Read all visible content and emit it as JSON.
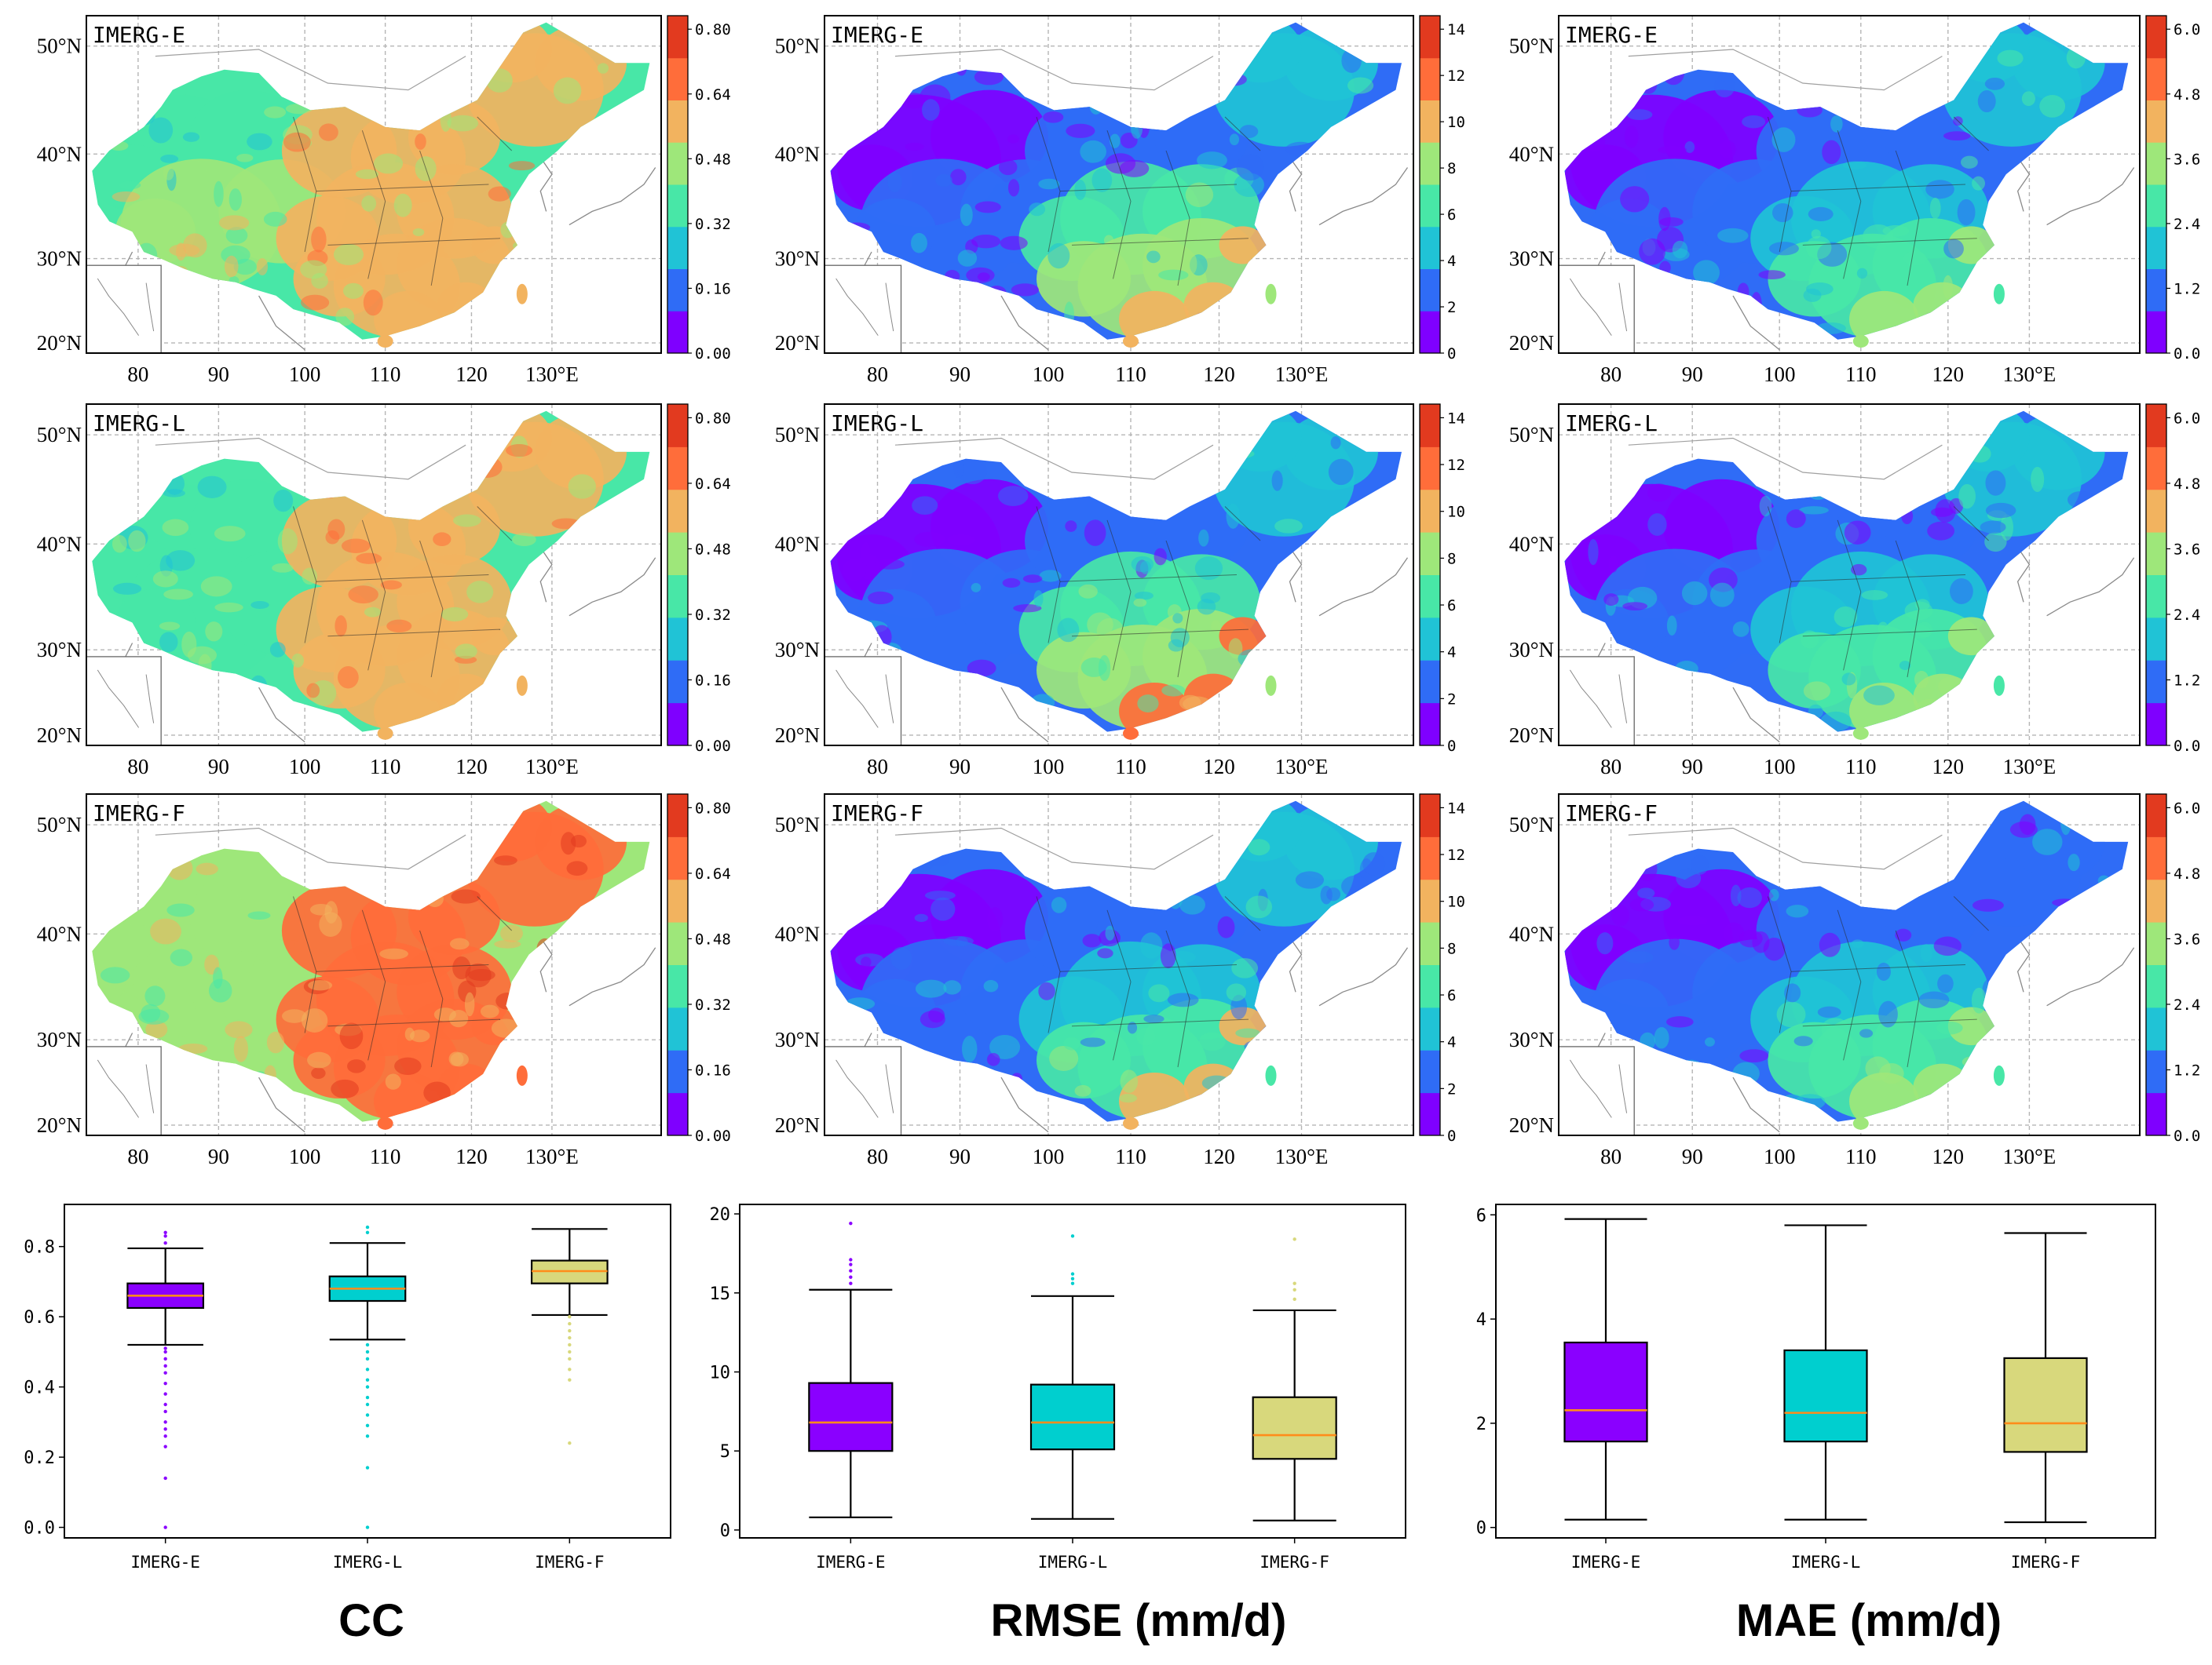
{
  "figure": {
    "captions": [
      "CC",
      "RMSE (mm/d)",
      "MAE (mm/d)"
    ]
  },
  "maps": {
    "lat_labels": [
      "50°N",
      "40°N",
      "30°N",
      "20°N"
    ],
    "lon_labels": [
      "80",
      "90",
      "100",
      "110",
      "120",
      "130°E"
    ],
    "products": [
      "IMERG-E",
      "IMERG-L",
      "IMERG-F"
    ],
    "metrics": [
      {
        "name": "CC",
        "colorbar_ticks": [
          "0.80",
          "0.64",
          "0.48",
          "0.32",
          "0.16",
          "0.00"
        ]
      },
      {
        "name": "RMSE",
        "colorbar_ticks": [
          "14",
          "12",
          "10",
          "8",
          "6",
          "4",
          "2",
          "0"
        ]
      },
      {
        "name": "MAE",
        "colorbar_ticks": [
          "6.0",
          "4.8",
          "3.6",
          "2.4",
          "1.2",
          "0.0"
        ]
      }
    ],
    "colormap": [
      "#7f00ff",
      "#2f6cf6",
      "#20c3d6",
      "#48e7a7",
      "#9ee77a",
      "#f2b35f",
      "#ff6d3a",
      "#e23a1f"
    ]
  },
  "chart_data": [
    {
      "type": "box",
      "title": "CC",
      "categories": [
        "IMERG-E",
        "IMERG-L",
        "IMERG-F"
      ],
      "ylim": [
        -0.03,
        0.92
      ],
      "yticks": [
        "0.0",
        "0.2",
        "0.4",
        "0.6",
        "0.8"
      ],
      "ytick_values": [
        0.0,
        0.2,
        0.4,
        0.6,
        0.8
      ],
      "boxes": [
        {
          "name": "IMERG-E",
          "color": "#8a00ff",
          "whisker_low": 0.52,
          "q1": 0.625,
          "median": 0.66,
          "q3": 0.695,
          "whisker_high": 0.795,
          "outliers": [
            0.0,
            0.14,
            0.23,
            0.26,
            0.28,
            0.3,
            0.33,
            0.35,
            0.38,
            0.41,
            0.44,
            0.46,
            0.48,
            0.5,
            0.51,
            0.81,
            0.83,
            0.84
          ]
        },
        {
          "name": "IMERG-L",
          "color": "#00cfcf",
          "whisker_low": 0.535,
          "q1": 0.645,
          "median": 0.68,
          "q3": 0.715,
          "whisker_high": 0.81,
          "outliers": [
            0.0,
            0.17,
            0.26,
            0.29,
            0.32,
            0.35,
            0.37,
            0.4,
            0.42,
            0.45,
            0.48,
            0.5,
            0.52,
            0.84,
            0.855
          ]
        },
        {
          "name": "IMERG-F",
          "color": "#d8d87c",
          "whisker_low": 0.605,
          "q1": 0.695,
          "median": 0.73,
          "q3": 0.76,
          "whisker_high": 0.85,
          "outliers": [
            0.24,
            0.42,
            0.45,
            0.48,
            0.5,
            0.52,
            0.54,
            0.56,
            0.58,
            0.6
          ]
        }
      ]
    },
    {
      "type": "box",
      "title": "RMSE (mm/d)",
      "categories": [
        "IMERG-E",
        "IMERG-L",
        "IMERG-F"
      ],
      "ylim": [
        -0.5,
        20.6
      ],
      "yticks": [
        "0",
        "5",
        "10",
        "15",
        "20"
      ],
      "ytick_values": [
        0,
        5,
        10,
        15,
        20
      ],
      "boxes": [
        {
          "name": "IMERG-E",
          "color": "#8a00ff",
          "whisker_low": 0.8,
          "q1": 5.0,
          "median": 6.8,
          "q3": 9.3,
          "whisker_high": 15.2,
          "outliers": [
            15.6,
            16.0,
            16.4,
            16.8,
            17.1,
            19.4
          ]
        },
        {
          "name": "IMERG-L",
          "color": "#00cfcf",
          "whisker_low": 0.7,
          "q1": 5.1,
          "median": 6.8,
          "q3": 9.2,
          "whisker_high": 14.8,
          "outliers": [
            15.6,
            15.9,
            16.2,
            18.6
          ]
        },
        {
          "name": "IMERG-F",
          "color": "#d8d87c",
          "whisker_low": 0.6,
          "q1": 4.5,
          "median": 6.0,
          "q3": 8.4,
          "whisker_high": 13.9,
          "outliers": [
            14.6,
            15.2,
            15.6,
            18.4
          ]
        }
      ]
    },
    {
      "type": "box",
      "title": "MAE (mm/d)",
      "categories": [
        "IMERG-E",
        "IMERG-L",
        "IMERG-F"
      ],
      "ylim": [
        -0.2,
        6.2
      ],
      "yticks": [
        "0",
        "2",
        "4",
        "6"
      ],
      "ytick_values": [
        0,
        2,
        4,
        6
      ],
      "boxes": [
        {
          "name": "IMERG-E",
          "color": "#8a00ff",
          "whisker_low": 0.15,
          "q1": 1.65,
          "median": 2.25,
          "q3": 3.55,
          "whisker_high": 5.92,
          "outliers": []
        },
        {
          "name": "IMERG-L",
          "color": "#00cfcf",
          "whisker_low": 0.15,
          "q1": 1.65,
          "median": 2.2,
          "q3": 3.4,
          "whisker_high": 5.8,
          "outliers": []
        },
        {
          "name": "IMERG-F",
          "color": "#d8d87c",
          "whisker_low": 0.1,
          "q1": 1.45,
          "median": 2.0,
          "q3": 3.25,
          "whisker_high": 5.65,
          "outliers": []
        }
      ]
    }
  ]
}
